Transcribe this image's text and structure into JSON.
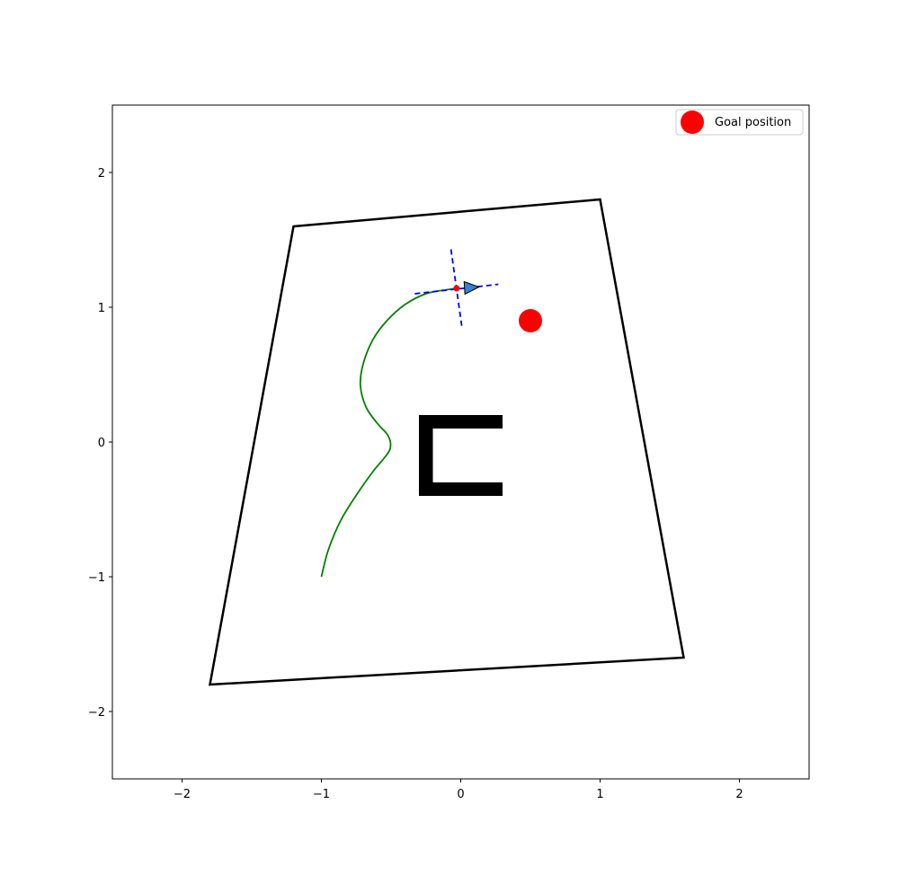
{
  "chart_data": {
    "type": "scatter",
    "title": "",
    "xlabel": "",
    "ylabel": "",
    "xlim": [
      -2.5,
      2.5
    ],
    "ylim": [
      -2.5,
      2.5
    ],
    "xticks": [
      -2,
      -1,
      0,
      1,
      2
    ],
    "yticks": [
      -2,
      -1,
      0,
      1,
      2
    ],
    "xtick_labels": [
      "−2",
      "−1",
      "0",
      "1",
      "2"
    ],
    "ytick_labels": [
      "−2",
      "−1",
      "0",
      "1",
      "2"
    ],
    "grid": false,
    "legend": {
      "placement": "top-right",
      "entries": [
        {
          "label": "Goal position",
          "color": "#ff0000",
          "marker": "circle"
        }
      ]
    },
    "boundary": {
      "color": "#000000",
      "points": [
        [
          -1.2,
          1.6
        ],
        [
          1.0,
          1.8
        ],
        [
          1.6,
          -1.6
        ],
        [
          -1.8,
          -1.8
        ]
      ]
    },
    "obstacles": {
      "color": "#000000",
      "rects": [
        {
          "x0": -0.3,
          "x1": 0.3,
          "y0": 0.1,
          "y1": 0.2
        },
        {
          "x0": -0.3,
          "x1": -0.2,
          "y0": -0.4,
          "y1": 0.2
        },
        {
          "x0": -0.3,
          "x1": 0.3,
          "y0": -0.4,
          "y1": -0.3
        }
      ]
    },
    "trajectory": {
      "color": "#008000",
      "points": [
        [
          -1.0,
          -1.0
        ],
        [
          -0.95,
          -0.8
        ],
        [
          -0.86,
          -0.58
        ],
        [
          -0.74,
          -0.38
        ],
        [
          -0.63,
          -0.22
        ],
        [
          -0.55,
          -0.12
        ],
        [
          -0.51,
          -0.06
        ],
        [
          -0.505,
          0.0
        ],
        [
          -0.53,
          0.06
        ],
        [
          -0.6,
          0.14
        ],
        [
          -0.68,
          0.26
        ],
        [
          -0.72,
          0.42
        ],
        [
          -0.7,
          0.58
        ],
        [
          -0.63,
          0.76
        ],
        [
          -0.53,
          0.9
        ],
        [
          -0.4,
          1.02
        ],
        [
          -0.25,
          1.1
        ],
        [
          -0.1,
          1.13
        ],
        [
          -0.03,
          1.14
        ]
      ]
    },
    "robot": {
      "position": [
        -0.03,
        1.14
      ],
      "marker_color": "#ff0000",
      "heading_axis_color": "#0000ff",
      "heading_axis": [
        [
          -0.33,
          1.1
        ],
        [
          0.27,
          1.17
        ]
      ],
      "normal_axis": [
        [
          -0.07,
          1.43
        ],
        [
          0.01,
          0.84
        ]
      ],
      "arrow_color": "#3a7fd5",
      "arrow_tip": [
        0.13,
        1.15
      ]
    },
    "goal": {
      "position": [
        0.5,
        0.9
      ],
      "color": "#ff0000",
      "label": "Goal position"
    }
  }
}
